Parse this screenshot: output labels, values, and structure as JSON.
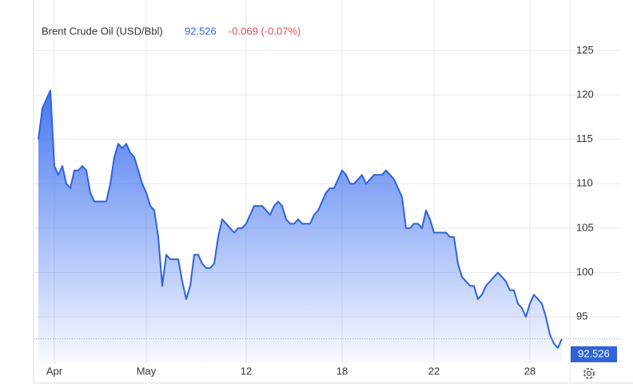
{
  "chart_data": {
    "type": "area",
    "title": "Brent Crude Oil (USD/Bbl)",
    "last_value": "92.526",
    "change": "-0.069 (-0.07%)",
    "categories": [
      null,
      null,
      null,
      null,
      "Apr",
      null,
      null,
      null,
      null,
      null,
      null,
      null,
      null,
      null,
      null,
      null,
      null,
      null,
      null,
      null,
      null,
      null,
      null,
      null,
      null,
      null,
      null,
      "May",
      null,
      null,
      null,
      null,
      null,
      null,
      null,
      null,
      null,
      null,
      null,
      null,
      null,
      null,
      null,
      null,
      null,
      null,
      null,
      null,
      null,
      null,
      null,
      null,
      "12",
      null,
      null,
      null,
      null,
      null,
      null,
      null,
      null,
      null,
      null,
      null,
      null,
      null,
      null,
      null,
      null,
      null,
      null,
      null,
      null,
      null,
      null,
      null,
      "18",
      null,
      null,
      null,
      null,
      null,
      null,
      null,
      null,
      null,
      null,
      null,
      null,
      null,
      null,
      null,
      null,
      null,
      null,
      null,
      null,
      null,
      null,
      "22",
      null,
      null,
      null,
      null,
      null,
      null,
      null,
      null,
      null,
      null,
      null,
      null,
      null,
      null,
      null,
      null,
      null,
      null,
      null,
      null,
      null,
      null,
      null,
      "28",
      null,
      null,
      null,
      null,
      null,
      null,
      null,
      null
    ],
    "series": [
      {
        "name": "Brent Crude Oil",
        "color": "#2f63d8",
        "values": [
          115,
          118.5,
          119.5,
          120.5,
          112,
          111,
          112,
          110,
          109.5,
          111.5,
          111.5,
          112,
          111.5,
          109,
          108,
          108,
          108,
          108,
          110,
          113,
          114.5,
          114,
          114.5,
          113.5,
          113,
          111.5,
          110,
          109,
          107.5,
          107,
          104,
          98.5,
          102,
          101.5,
          101.5,
          101.5,
          99,
          97,
          98.5,
          102,
          102,
          101,
          100.5,
          100.5,
          101,
          104,
          106,
          105.5,
          105,
          104.5,
          105,
          105,
          105.5,
          106.5,
          107.5,
          107.5,
          107.5,
          107,
          106.5,
          107.5,
          108,
          107.5,
          106,
          105.5,
          105.5,
          106,
          105.5,
          105.5,
          105.5,
          106.5,
          107,
          108,
          109,
          109.5,
          109.5,
          110.5,
          111.5,
          111,
          110,
          110,
          110.5,
          111,
          110,
          110.5,
          111,
          111,
          111,
          111.5,
          111,
          110.5,
          109.5,
          108.5,
          105,
          105,
          105.5,
          105.5,
          105,
          107,
          106,
          104.5,
          104.5,
          104.5,
          104.5,
          104,
          104,
          101,
          99.5,
          99,
          98.5,
          98.5,
          97,
          97.5,
          98.5,
          99,
          99.5,
          100,
          99.5,
          99,
          98,
          98,
          96.5,
          96,
          95,
          96.5,
          97.5,
          97,
          96.5,
          95,
          93,
          92,
          91.5,
          92.526
        ]
      }
    ],
    "ylim": [
      89.8,
      130.7
    ],
    "yticks": [
      95,
      100,
      105,
      110,
      115,
      120,
      125
    ],
    "grid": true
  }
}
